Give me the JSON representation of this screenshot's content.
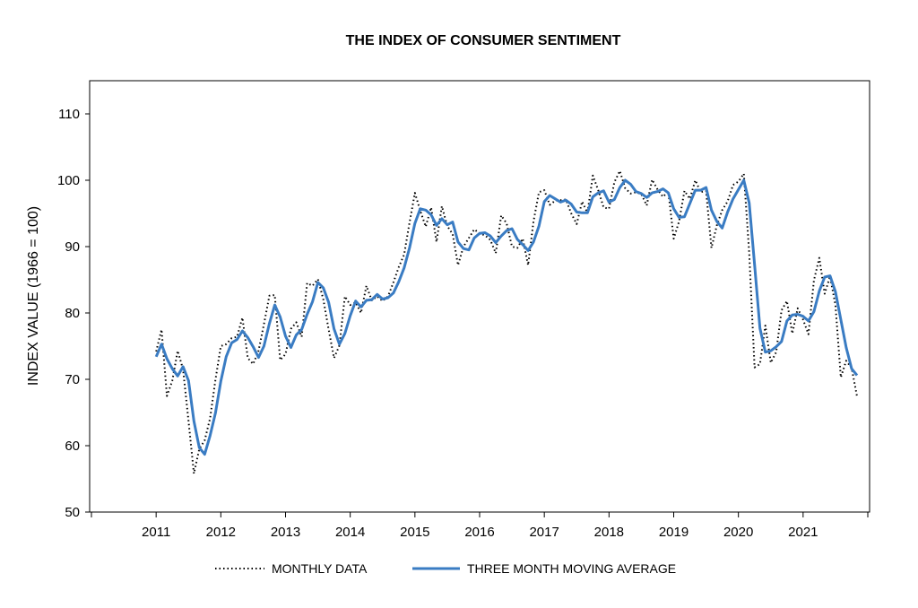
{
  "chart_data": {
    "type": "line",
    "title": "THE INDEX OF CONSUMER SENTIMENT",
    "xlabel": "",
    "ylabel": "INDEX VALUE (1966 = 100)",
    "ylim": [
      50,
      115
    ],
    "yticks": [
      50,
      60,
      70,
      80,
      90,
      100,
      110
    ],
    "xlim": [
      2010.0,
      2022.0
    ],
    "xticks": [
      "2011",
      "2012",
      "2013",
      "2014",
      "2015",
      "2016",
      "2017",
      "2018",
      "2019",
      "2020",
      "2021"
    ],
    "grid": false,
    "legend_position": "bottom",
    "colors": {
      "monthly": "#000000",
      "moving_average": "#3a7cc3"
    },
    "series": [
      {
        "name": "MONTHLY DATA",
        "style": "dotted",
        "start": "2011-01",
        "values": [
          74.2,
          77.5,
          67.5,
          69.8,
          74.3,
          71.5,
          63.7,
          55.8,
          59.5,
          60.8,
          64.1,
          69.9,
          75.0,
          75.3,
          76.2,
          76.4,
          79.3,
          73.2,
          72.3,
          74.3,
          78.3,
          82.6,
          82.7,
          72.9,
          73.8,
          77.6,
          78.6,
          76.4,
          84.5,
          84.1,
          85.1,
          82.1,
          77.5,
          73.2,
          75.1,
          82.5,
          81.2,
          81.6,
          80.0,
          84.1,
          81.9,
          82.5,
          81.8,
          82.5,
          84.6,
          86.9,
          88.8,
          93.6,
          98.1,
          95.4,
          93.0,
          95.9,
          90.7,
          96.1,
          93.1,
          91.9,
          87.2,
          90.0,
          91.3,
          92.6,
          92.0,
          91.7,
          91.0,
          89.0,
          94.7,
          93.5,
          90.0,
          89.8,
          91.2,
          87.2,
          93.8,
          98.2,
          98.5,
          96.3,
          96.9,
          97.0,
          97.1,
          95.0,
          93.4,
          96.8,
          95.1,
          100.7,
          98.5,
          95.9,
          95.7,
          99.7,
          101.4,
          98.8,
          98.0,
          98.2,
          97.9,
          96.2,
          100.1,
          98.6,
          97.5,
          98.3,
          91.2,
          93.8,
          98.4,
          97.2,
          100.0,
          98.2,
          98.4,
          89.8,
          93.2,
          95.5,
          96.8,
          99.3,
          99.8,
          101.0,
          89.1,
          71.8,
          72.3,
          78.1,
          72.5,
          74.1,
          80.4,
          81.8,
          76.9,
          80.7,
          79.0,
          76.8,
          84.9,
          88.3,
          82.9,
          85.5,
          81.2,
          70.3,
          72.8,
          71.7,
          67.4
        ]
      },
      {
        "name": "THREE MONTH MOVING AVERAGE",
        "style": "solid",
        "start": "2011-01",
        "values": [
          73.4,
          75.3,
          73.1,
          71.6,
          70.5,
          71.9,
          69.8,
          63.7,
          59.7,
          58.7,
          61.5,
          64.9,
          69.7,
          73.4,
          75.5,
          76.0,
          77.3,
          76.3,
          74.9,
          73.3,
          75.0,
          78.4,
          81.2,
          79.4,
          76.5,
          74.8,
          76.7,
          77.5,
          79.8,
          81.7,
          84.6,
          83.8,
          81.6,
          77.6,
          75.3,
          76.9,
          79.6,
          81.8,
          80.9,
          81.9,
          82.0,
          82.8,
          82.1,
          82.3,
          83.0,
          84.7,
          86.8,
          89.8,
          93.5,
          95.7,
          95.5,
          94.8,
          93.2,
          94.2,
          93.3,
          93.7,
          90.7,
          89.7,
          89.5,
          91.3,
          92.0,
          92.1,
          91.6,
          90.6,
          91.6,
          92.4,
          92.7,
          91.1,
          90.3,
          89.4,
          90.7,
          93.1,
          96.8,
          97.7,
          97.2,
          96.7,
          97.0,
          96.4,
          95.2,
          95.1,
          95.1,
          97.5,
          98.1,
          98.4,
          96.7,
          97.1,
          98.9,
          100.0,
          99.4,
          98.3,
          98.0,
          97.4,
          98.1,
          98.3,
          98.7,
          98.1,
          95.7,
          94.4,
          94.5,
          96.5,
          98.5,
          98.5,
          98.9,
          95.5,
          93.8,
          92.8,
          95.2,
          97.2,
          98.6,
          100.0,
          96.6,
          87.3,
          77.7,
          74.1,
          74.3,
          74.9,
          75.7,
          78.8,
          79.7,
          79.8,
          79.5,
          78.8,
          80.2,
          83.3,
          85.4,
          85.6,
          83.2,
          79.0,
          74.8,
          71.6,
          70.6
        ]
      }
    ]
  }
}
